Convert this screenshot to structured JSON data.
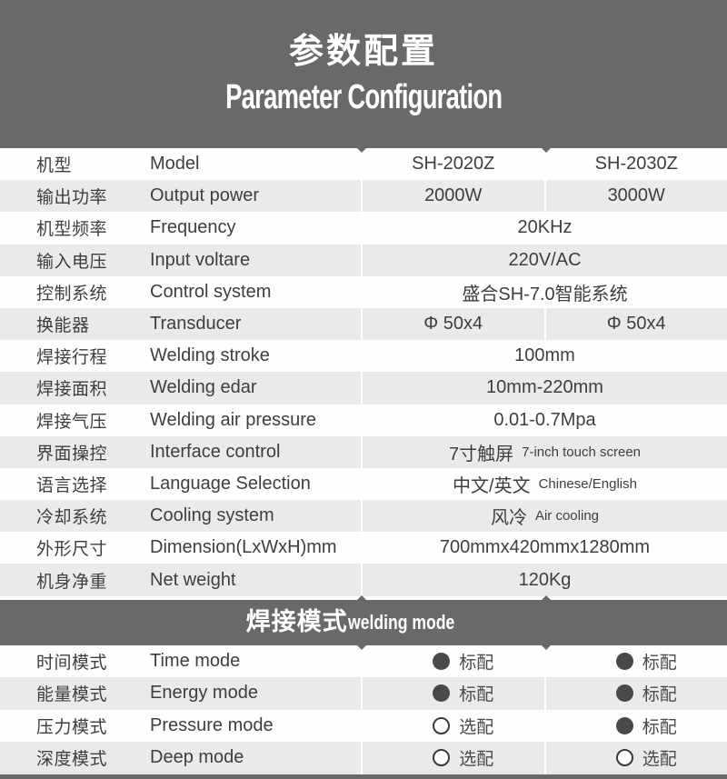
{
  "header": {
    "title_zh": "参数配置",
    "title_en": "Parameter Configuration"
  },
  "spec": {
    "rows": [
      {
        "zh": "机型",
        "en": "Model",
        "v1": "SH-2020Z",
        "v2": "SH-2030Z"
      },
      {
        "zh": "输出功率",
        "en": "Output power",
        "v1": "2000W",
        "v2": "3000W"
      },
      {
        "zh": "机型频率",
        "en": "Frequency",
        "v": "20KHz"
      },
      {
        "zh": "输入电压",
        "en": "Input voltare",
        "v": "220V/AC"
      },
      {
        "zh": "控制系统",
        "en": "Control system",
        "v": "盛合SH-7.0智能系统"
      },
      {
        "zh": "换能器",
        "en": "Transducer",
        "v1": "Φ 50x4",
        "v2": "Φ 50x4"
      },
      {
        "zh": "焊接行程",
        "en": "Welding stroke",
        "v": "100mm"
      },
      {
        "zh": "焊接面积",
        "en": "Welding edar",
        "v": "10mm-220mm"
      },
      {
        "zh": "焊接气压",
        "en": "Welding air pressure",
        "v": "0.01-0.7Mpa"
      },
      {
        "zh": "界面操控",
        "en": "Interface control",
        "v": "7寸触屏",
        "v_en": "7-inch touch screen"
      },
      {
        "zh": "语言选择",
        "en": "Language Selection",
        "v": "中文/英文",
        "v_en": "Chinese/English"
      },
      {
        "zh": "冷却系统",
        "en": "Cooling system",
        "v": "风冷",
        "v_en": "Air cooling"
      },
      {
        "zh": "外形尺寸",
        "en": "Dimension(LxWxH)mm",
        "v": "700mmx420mmx1280mm"
      },
      {
        "zh": "机身净重",
        "en": "Net weight",
        "v": "120Kg"
      }
    ]
  },
  "modes": {
    "title_zh": "焊接模式",
    "title_en": "welding mode",
    "rows": [
      {
        "zh": "时间模式",
        "en": "Time mode",
        "c1": {
          "state": "filled",
          "label": "标配"
        },
        "c2": {
          "state": "filled",
          "label": "标配"
        }
      },
      {
        "zh": "能量模式",
        "en": "Energy mode",
        "c1": {
          "state": "filled",
          "label": "标配"
        },
        "c2": {
          "state": "filled",
          "label": "标配"
        }
      },
      {
        "zh": "压力模式",
        "en": "Pressure mode",
        "c1": {
          "state": "open",
          "label": "选配"
        },
        "c2": {
          "state": "filled",
          "label": "标配"
        }
      },
      {
        "zh": "深度模式",
        "en": "Deep mode",
        "c1": {
          "state": "open",
          "label": "选配"
        },
        "c2": {
          "state": "open",
          "label": "选配"
        }
      }
    ]
  },
  "colors": {
    "band": "#6b6868",
    "row_gray": "#ebeaea",
    "mark_filled": "#4b4849",
    "text": "#3f3d3e"
  }
}
